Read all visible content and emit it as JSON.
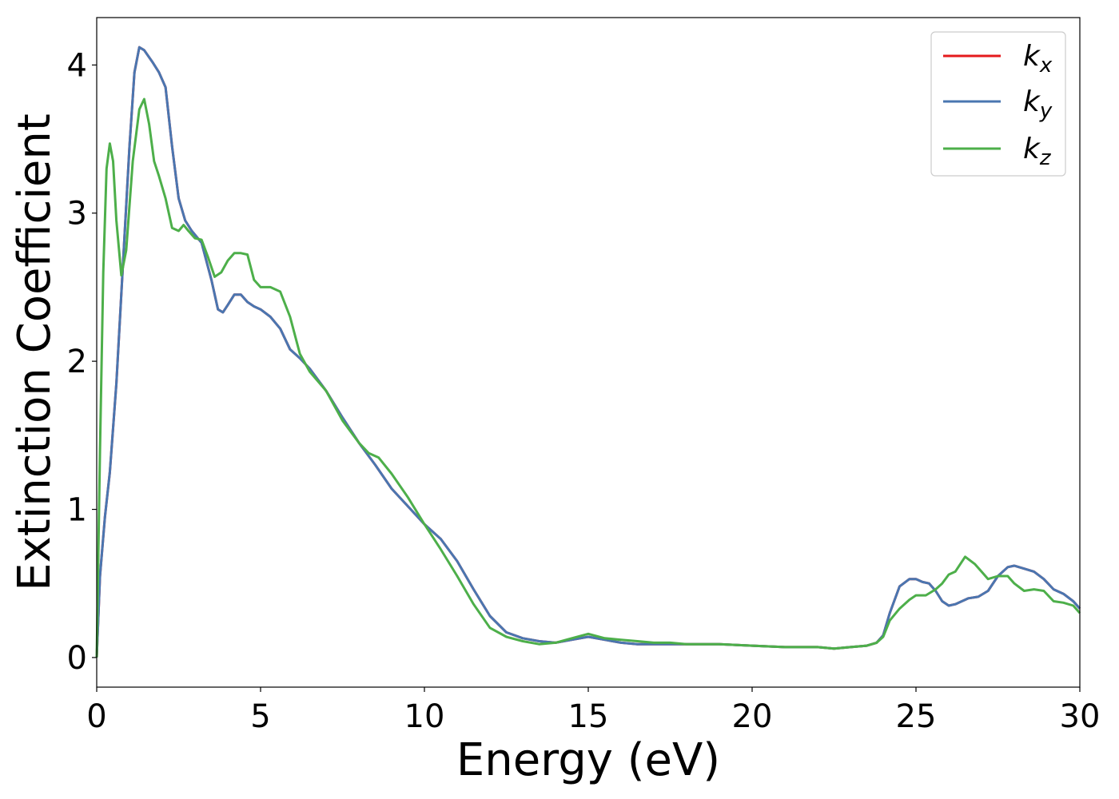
{
  "chart_data": {
    "type": "line",
    "title": "",
    "xlabel": "Energy (eV)",
    "ylabel": "Extinction Coefficient",
    "xlim": [
      0,
      30
    ],
    "ylim": [
      -0.2,
      4.32
    ],
    "x_ticks": [
      0,
      5,
      10,
      15,
      20,
      25,
      30
    ],
    "y_ticks": [
      0,
      1,
      2,
      3,
      4
    ],
    "grid": false,
    "legend_position": "top-right",
    "series": [
      {
        "name": "k",
        "subscript": "x",
        "color": "#e41a1c",
        "x": [
          0,
          0.1,
          0.25,
          0.4,
          0.6,
          0.8,
          1.0,
          1.15,
          1.3,
          1.45,
          1.7,
          1.9,
          2.1,
          2.3,
          2.5,
          2.7,
          2.9,
          3.2,
          3.5,
          3.7,
          3.85,
          4.0,
          4.2,
          4.4,
          4.6,
          4.8,
          5.0,
          5.3,
          5.6,
          5.9,
          6.2,
          6.5,
          7.0,
          7.5,
          8.0,
          8.5,
          9.0,
          9.5,
          10.0,
          10.5,
          11.0,
          11.5,
          12.0,
          12.5,
          13.0,
          13.5,
          14.0,
          14.5,
          15.0,
          15.5,
          16.0,
          16.5,
          17.0,
          17.5,
          18.0,
          19.0,
          20.0,
          21.0,
          22.0,
          22.5,
          23.0,
          23.5,
          23.8,
          24.0,
          24.2,
          24.5,
          24.8,
          25.0,
          25.2,
          25.4,
          25.6,
          25.8,
          26.0,
          26.2,
          26.4,
          26.6,
          26.9,
          27.2,
          27.5,
          27.8,
          28.0,
          28.3,
          28.6,
          28.9,
          29.2,
          29.5,
          29.8,
          30.0
        ],
        "y": [
          0.0,
          0.55,
          0.95,
          1.25,
          1.85,
          2.65,
          3.45,
          3.95,
          4.12,
          4.1,
          4.02,
          3.95,
          3.85,
          3.45,
          3.1,
          2.95,
          2.88,
          2.8,
          2.55,
          2.35,
          2.33,
          2.38,
          2.45,
          2.45,
          2.4,
          2.37,
          2.35,
          2.3,
          2.22,
          2.08,
          2.02,
          1.95,
          1.8,
          1.62,
          1.45,
          1.3,
          1.14,
          1.02,
          0.9,
          0.8,
          0.65,
          0.46,
          0.28,
          0.17,
          0.13,
          0.11,
          0.1,
          0.12,
          0.14,
          0.12,
          0.1,
          0.09,
          0.09,
          0.09,
          0.09,
          0.09,
          0.08,
          0.07,
          0.07,
          0.06,
          0.07,
          0.08,
          0.1,
          0.15,
          0.3,
          0.48,
          0.53,
          0.53,
          0.51,
          0.5,
          0.45,
          0.38,
          0.35,
          0.36,
          0.38,
          0.4,
          0.41,
          0.45,
          0.55,
          0.61,
          0.62,
          0.6,
          0.58,
          0.53,
          0.46,
          0.43,
          0.38,
          0.33
        ]
      },
      {
        "name": "k",
        "subscript": "y",
        "color": "#4a76b0",
        "x": [
          0,
          0.1,
          0.25,
          0.4,
          0.6,
          0.8,
          1.0,
          1.15,
          1.3,
          1.45,
          1.7,
          1.9,
          2.1,
          2.3,
          2.5,
          2.7,
          2.9,
          3.2,
          3.5,
          3.7,
          3.85,
          4.0,
          4.2,
          4.4,
          4.6,
          4.8,
          5.0,
          5.3,
          5.6,
          5.9,
          6.2,
          6.5,
          7.0,
          7.5,
          8.0,
          8.5,
          9.0,
          9.5,
          10.0,
          10.5,
          11.0,
          11.5,
          12.0,
          12.5,
          13.0,
          13.5,
          14.0,
          14.5,
          15.0,
          15.5,
          16.0,
          16.5,
          17.0,
          17.5,
          18.0,
          19.0,
          20.0,
          21.0,
          22.0,
          22.5,
          23.0,
          23.5,
          23.8,
          24.0,
          24.2,
          24.5,
          24.8,
          25.0,
          25.2,
          25.4,
          25.6,
          25.8,
          26.0,
          26.2,
          26.4,
          26.6,
          26.9,
          27.2,
          27.5,
          27.8,
          28.0,
          28.3,
          28.6,
          28.9,
          29.2,
          29.5,
          29.8,
          30.0
        ],
        "y": [
          0.0,
          0.55,
          0.95,
          1.25,
          1.85,
          2.65,
          3.45,
          3.95,
          4.12,
          4.1,
          4.02,
          3.95,
          3.85,
          3.45,
          3.1,
          2.95,
          2.88,
          2.8,
          2.55,
          2.35,
          2.33,
          2.38,
          2.45,
          2.45,
          2.4,
          2.37,
          2.35,
          2.3,
          2.22,
          2.08,
          2.02,
          1.95,
          1.8,
          1.62,
          1.45,
          1.3,
          1.14,
          1.02,
          0.9,
          0.8,
          0.65,
          0.46,
          0.28,
          0.17,
          0.13,
          0.11,
          0.1,
          0.12,
          0.14,
          0.12,
          0.1,
          0.09,
          0.09,
          0.09,
          0.09,
          0.09,
          0.08,
          0.07,
          0.07,
          0.06,
          0.07,
          0.08,
          0.1,
          0.15,
          0.3,
          0.48,
          0.53,
          0.53,
          0.51,
          0.5,
          0.45,
          0.38,
          0.35,
          0.36,
          0.38,
          0.4,
          0.41,
          0.45,
          0.55,
          0.61,
          0.62,
          0.6,
          0.58,
          0.53,
          0.46,
          0.43,
          0.38,
          0.33
        ]
      },
      {
        "name": "k",
        "subscript": "z",
        "color": "#4daf4a",
        "x": [
          0,
          0.1,
          0.2,
          0.3,
          0.4,
          0.5,
          0.6,
          0.75,
          0.9,
          1.1,
          1.3,
          1.45,
          1.6,
          1.75,
          1.9,
          2.1,
          2.3,
          2.5,
          2.65,
          2.8,
          3.0,
          3.2,
          3.4,
          3.6,
          3.8,
          4.0,
          4.2,
          4.4,
          4.6,
          4.8,
          5.0,
          5.3,
          5.6,
          5.9,
          6.2,
          6.5,
          7.0,
          7.5,
          8.0,
          8.3,
          8.6,
          9.0,
          9.5,
          10.0,
          10.5,
          11.0,
          11.5,
          12.0,
          12.5,
          13.0,
          13.5,
          14.0,
          14.5,
          15.0,
          15.5,
          16.0,
          16.5,
          17.0,
          17.5,
          18.0,
          19.0,
          20.0,
          21.0,
          22.0,
          22.5,
          23.0,
          23.5,
          23.8,
          24.0,
          24.2,
          24.5,
          24.8,
          25.0,
          25.3,
          25.6,
          25.8,
          26.0,
          26.2,
          26.5,
          26.8,
          27.0,
          27.2,
          27.5,
          27.8,
          28.0,
          28.3,
          28.6,
          28.9,
          29.2,
          29.5,
          29.8,
          30.0
        ],
        "y": [
          0.0,
          1.4,
          2.6,
          3.3,
          3.47,
          3.35,
          2.95,
          2.58,
          2.75,
          3.35,
          3.7,
          3.77,
          3.6,
          3.35,
          3.25,
          3.1,
          2.9,
          2.88,
          2.92,
          2.88,
          2.83,
          2.82,
          2.7,
          2.57,
          2.6,
          2.68,
          2.73,
          2.73,
          2.72,
          2.55,
          2.5,
          2.5,
          2.47,
          2.3,
          2.05,
          1.93,
          1.8,
          1.6,
          1.45,
          1.38,
          1.35,
          1.24,
          1.08,
          0.9,
          0.73,
          0.55,
          0.36,
          0.2,
          0.14,
          0.11,
          0.09,
          0.1,
          0.13,
          0.16,
          0.13,
          0.12,
          0.11,
          0.1,
          0.1,
          0.09,
          0.09,
          0.08,
          0.07,
          0.07,
          0.06,
          0.07,
          0.08,
          0.1,
          0.14,
          0.25,
          0.33,
          0.39,
          0.42,
          0.42,
          0.46,
          0.5,
          0.56,
          0.58,
          0.68,
          0.63,
          0.58,
          0.53,
          0.55,
          0.55,
          0.5,
          0.45,
          0.46,
          0.45,
          0.38,
          0.37,
          0.35,
          0.3
        ]
      }
    ]
  }
}
